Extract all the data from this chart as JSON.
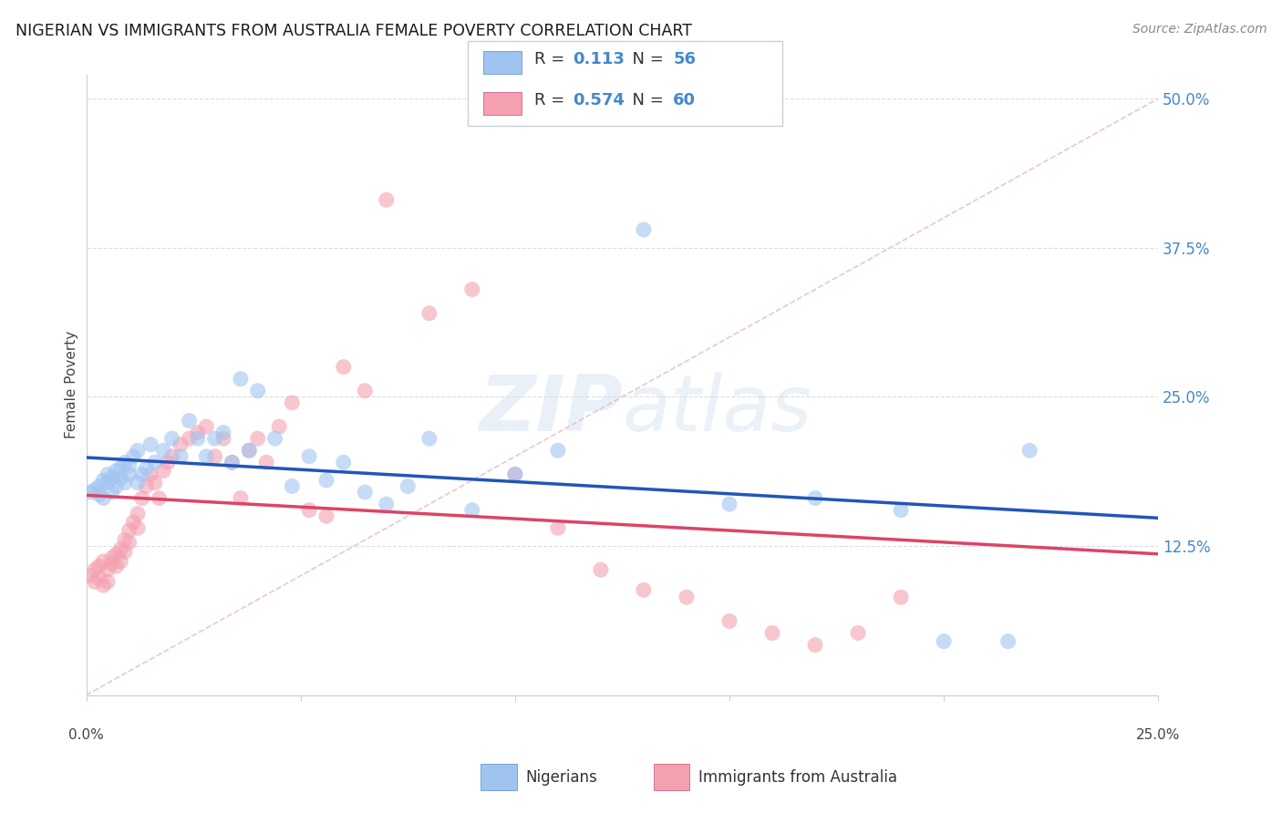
{
  "title": "NIGERIAN VS IMMIGRANTS FROM AUSTRALIA FEMALE POVERTY CORRELATION CHART",
  "source": "Source: ZipAtlas.com",
  "ylabel": "Female Poverty",
  "xlim": [
    0.0,
    0.25
  ],
  "ylim": [
    0.0,
    0.52
  ],
  "yticks": [
    0.0,
    0.125,
    0.25,
    0.375,
    0.5
  ],
  "ytick_labels": [
    "",
    "12.5%",
    "25.0%",
    "37.5%",
    "50.0%"
  ],
  "xtick_label_left": "0.0%",
  "xtick_label_right": "25.0%",
  "R_blue": "0.113",
  "N_blue": "56",
  "R_pink": "0.574",
  "N_pink": "60",
  "legend_label1": "Nigerians",
  "legend_label2": "Immigrants from Australia",
  "blue_scatter": "#a0c4f0",
  "pink_scatter": "#f4a0b0",
  "blue_trend": "#2255bb",
  "pink_trend": "#dd4466",
  "diag_color": "#e8b8c0",
  "watermark": "ZIPatlas",
  "grid_color": "#d8dde8",
  "nigerians_x": [
    0.001,
    0.002,
    0.003,
    0.003,
    0.004,
    0.004,
    0.005,
    0.005,
    0.006,
    0.006,
    0.007,
    0.007,
    0.008,
    0.008,
    0.009,
    0.009,
    0.01,
    0.01,
    0.011,
    0.012,
    0.012,
    0.013,
    0.014,
    0.015,
    0.016,
    0.018,
    0.02,
    0.022,
    0.024,
    0.026,
    0.028,
    0.03,
    0.032,
    0.034,
    0.036,
    0.038,
    0.04,
    0.044,
    0.048,
    0.052,
    0.056,
    0.06,
    0.065,
    0.07,
    0.075,
    0.08,
    0.09,
    0.1,
    0.11,
    0.13,
    0.15,
    0.17,
    0.19,
    0.2,
    0.215,
    0.22
  ],
  "nigerians_y": [
    0.17,
    0.172,
    0.175,
    0.168,
    0.18,
    0.165,
    0.178,
    0.185,
    0.182,
    0.17,
    0.188,
    0.175,
    0.19,
    0.182,
    0.195,
    0.178,
    0.185,
    0.192,
    0.2,
    0.178,
    0.205,
    0.185,
    0.19,
    0.21,
    0.195,
    0.205,
    0.215,
    0.2,
    0.23,
    0.215,
    0.2,
    0.215,
    0.22,
    0.195,
    0.265,
    0.205,
    0.255,
    0.215,
    0.175,
    0.2,
    0.18,
    0.195,
    0.17,
    0.16,
    0.175,
    0.215,
    0.155,
    0.185,
    0.205,
    0.39,
    0.16,
    0.165,
    0.155,
    0.045,
    0.045,
    0.205
  ],
  "australia_x": [
    0.001,
    0.002,
    0.002,
    0.003,
    0.003,
    0.004,
    0.004,
    0.005,
    0.005,
    0.006,
    0.006,
    0.007,
    0.007,
    0.008,
    0.008,
    0.009,
    0.009,
    0.01,
    0.01,
    0.011,
    0.012,
    0.012,
    0.013,
    0.014,
    0.015,
    0.016,
    0.017,
    0.018,
    0.019,
    0.02,
    0.022,
    0.024,
    0.026,
    0.028,
    0.03,
    0.032,
    0.034,
    0.036,
    0.038,
    0.04,
    0.042,
    0.045,
    0.048,
    0.052,
    0.056,
    0.06,
    0.065,
    0.07,
    0.08,
    0.09,
    0.1,
    0.11,
    0.12,
    0.13,
    0.14,
    0.15,
    0.16,
    0.17,
    0.18,
    0.19
  ],
  "australia_y": [
    0.1,
    0.105,
    0.095,
    0.108,
    0.098,
    0.112,
    0.092,
    0.105,
    0.095,
    0.11,
    0.115,
    0.118,
    0.108,
    0.122,
    0.112,
    0.13,
    0.12,
    0.138,
    0.128,
    0.145,
    0.152,
    0.14,
    0.165,
    0.175,
    0.185,
    0.178,
    0.165,
    0.188,
    0.195,
    0.2,
    0.21,
    0.215,
    0.22,
    0.225,
    0.2,
    0.215,
    0.195,
    0.165,
    0.205,
    0.215,
    0.195,
    0.225,
    0.245,
    0.155,
    0.15,
    0.275,
    0.255,
    0.415,
    0.32,
    0.34,
    0.185,
    0.14,
    0.105,
    0.088,
    0.082,
    0.062,
    0.052,
    0.042,
    0.052,
    0.082
  ]
}
